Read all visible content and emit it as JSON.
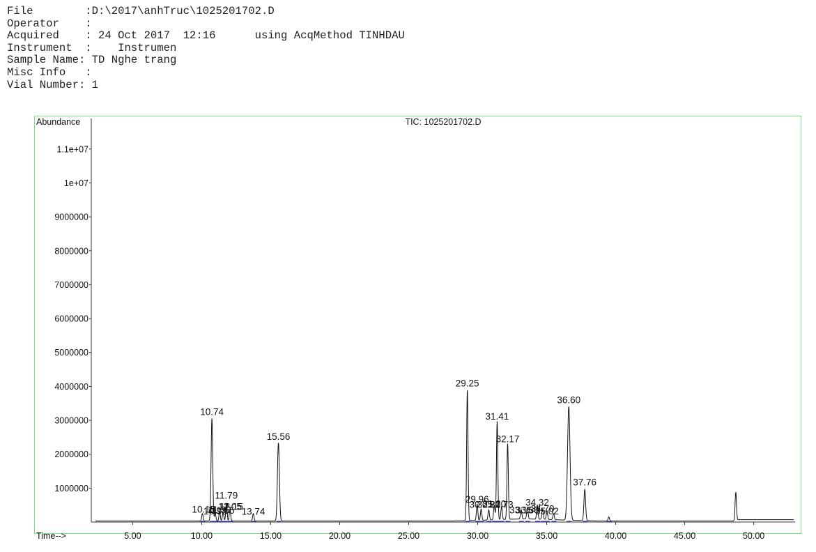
{
  "header": {
    "rows": [
      {
        "key": "File        ",
        "value": ":D:\\2017\\anhTruc\\1025201702.D"
      },
      {
        "key": "Operator    ",
        "value": ":"
      },
      {
        "key": "Acquired    ",
        "value": ": 24 Oct 2017  12:16      using AcqMethod TINHDAU"
      },
      {
        "key": "Instrument  ",
        "value": ":    Instrumen"
      },
      {
        "key": "Sample Name",
        "value": ": TD Nghe trang"
      },
      {
        "key": "Misc Info   ",
        "value": ":"
      },
      {
        "key": "Vial Number",
        "value": ": 1"
      }
    ]
  },
  "chart_data": {
    "type": "line",
    "title": "TIC: 1025201702.D",
    "ylabel": "Abundance",
    "xlabel": "Time-->",
    "xlim": [
      2.0,
      53.0
    ],
    "ylim": [
      0,
      11900000
    ],
    "grid": false,
    "colors": {
      "frame": "#7ee27e",
      "trace": "#111111",
      "baseline": "#2b2bd6"
    },
    "x_ticks": [
      5,
      10,
      15,
      20,
      25,
      30,
      35,
      40,
      45,
      50
    ],
    "x_tick_labels": [
      "5.00",
      "10.00",
      "15.00",
      "20.00",
      "25.00",
      "30.00",
      "35.00",
      "40.00",
      "45.00",
      "50.00"
    ],
    "y_ticks": [
      1000000,
      2000000,
      3000000,
      4000000,
      5000000,
      6000000,
      7000000,
      8000000,
      9000000,
      10000000,
      11000000
    ],
    "y_tick_labels": [
      "1000000",
      "2000000",
      "3000000",
      "4000000",
      "5000000",
      "6000000",
      "7000000",
      "8000000",
      "9000000",
      "1e+07",
      "1.1e+07"
    ],
    "baseline_level": 30000,
    "peaks": [
      {
        "rt": 10.05,
        "height": 220000,
        "width": 0.05
      },
      {
        "rt": 10.74,
        "height": 3020000,
        "width": 0.06
      },
      {
        "rt": 10.98,
        "height": 230000,
        "width": 0.05
      },
      {
        "rt": 11.3,
        "height": 280000,
        "width": 0.05
      },
      {
        "rt": 11.55,
        "height": 250000,
        "width": 0.05
      },
      {
        "rt": 11.79,
        "height": 520000,
        "width": 0.05
      },
      {
        "rt": 12.05,
        "height": 340000,
        "width": 0.05
      },
      {
        "rt": 13.74,
        "height": 220000,
        "width": 0.05
      },
      {
        "rt": 15.56,
        "height": 2300000,
        "width": 0.07
      },
      {
        "rt": 29.25,
        "height": 3850000,
        "width": 0.05
      },
      {
        "rt": 29.96,
        "height": 480000,
        "width": 0.05
      },
      {
        "rt": 30.25,
        "height": 330000,
        "width": 0.05
      },
      {
        "rt": 30.8,
        "height": 300000,
        "width": 0.05
      },
      {
        "rt": 31.2,
        "height": 430000,
        "width": 0.05
      },
      {
        "rt": 31.41,
        "height": 2900000,
        "width": 0.05
      },
      {
        "rt": 31.73,
        "height": 380000,
        "width": 0.05
      },
      {
        "rt": 32.17,
        "height": 2230000,
        "width": 0.05
      },
      {
        "rt": 33.15,
        "height": 280000,
        "width": 0.05
      },
      {
        "rt": 33.6,
        "height": 350000,
        "width": 0.05
      },
      {
        "rt": 34.32,
        "height": 400000,
        "width": 0.05
      },
      {
        "rt": 34.7,
        "height": 300000,
        "width": 0.05
      },
      {
        "rt": 35.02,
        "height": 250000,
        "width": 0.05
      },
      {
        "rt": 35.5,
        "height": 180000,
        "width": 0.05
      },
      {
        "rt": 36.6,
        "height": 3350000,
        "width": 0.09
      },
      {
        "rt": 37.76,
        "height": 920000,
        "width": 0.06
      },
      {
        "rt": 39.5,
        "height": 120000,
        "width": 0.05
      },
      {
        "rt": 48.7,
        "height": 830000,
        "width": 0.05
      }
    ],
    "peak_labels": [
      {
        "text": "10.74",
        "x": 10.74,
        "y": 3150000
      },
      {
        "text": "15.56",
        "x": 15.56,
        "y": 2430000
      },
      {
        "text": "11.79",
        "x": 11.79,
        "y": 690000
      },
      {
        "text": "10.15",
        "x": 10.15,
        "y": 280000
      },
      {
        "text": "10.98",
        "x": 10.98,
        "y": 230000
      },
      {
        "text": "11.30",
        "x": 11.3,
        "y": 270000
      },
      {
        "text": "11.55",
        "x": 11.55,
        "y": 250000
      },
      {
        "text": "12.05",
        "x": 12.05,
        "y": 360000
      },
      {
        "text": "12.15",
        "x": 12.15,
        "y": 360000
      },
      {
        "text": "13.74",
        "x": 13.74,
        "y": 220000
      },
      {
        "text": "29.25",
        "x": 29.25,
        "y": 4000000
      },
      {
        "text": "31.41",
        "x": 31.41,
        "y": 3020000
      },
      {
        "text": "32.17",
        "x": 32.17,
        "y": 2350000
      },
      {
        "text": "36.60",
        "x": 36.6,
        "y": 3500000
      },
      {
        "text": "37.76",
        "x": 37.76,
        "y": 1080000
      },
      {
        "text": "29.96",
        "x": 29.96,
        "y": 580000
      },
      {
        "text": "30.25",
        "x": 30.25,
        "y": 420000
      },
      {
        "text": "30.80",
        "x": 30.8,
        "y": 420000
      },
      {
        "text": "31.20",
        "x": 31.2,
        "y": 440000
      },
      {
        "text": "31.73",
        "x": 31.73,
        "y": 420000
      },
      {
        "text": "33.15",
        "x": 33.15,
        "y": 260000
      },
      {
        "text": "33.60",
        "x": 33.6,
        "y": 260000
      },
      {
        "text": "34.32",
        "x": 34.32,
        "y": 480000
      },
      {
        "text": "34.70",
        "x": 34.7,
        "y": 300000
      },
      {
        "text": "35.02",
        "x": 35.02,
        "y": 230000
      }
    ]
  }
}
